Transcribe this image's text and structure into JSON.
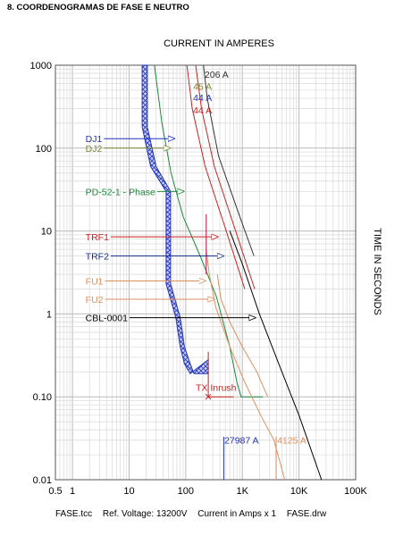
{
  "heading": "8.  COORDENOGRAMAS DE FASE E NEUTRO",
  "footer": {
    "file": "FASE.tcc",
    "ref_voltage": "Ref. Voltage: 13200V",
    "current_scale": "Current in Amps x 1",
    "drawing": "FASE.drw"
  },
  "chart_data": {
    "type": "line",
    "title": "",
    "xlabel": "CURRENT IN AMPERES",
    "ylabel": "TIME IN SECONDS",
    "x_scale": "log",
    "y_scale": "log",
    "xlim": [
      0.5,
      100000
    ],
    "ylim": [
      0.01,
      1000
    ],
    "grid": true,
    "x_ticks": [
      {
        "value": 0.5,
        "label": "0.5"
      },
      {
        "value": 1,
        "label": "1"
      },
      {
        "value": 10,
        "label": "10"
      },
      {
        "value": 100,
        "label": "100"
      },
      {
        "value": 1000,
        "label": "1K"
      },
      {
        "value": 10000,
        "label": "10K"
      },
      {
        "value": 100000,
        "label": "100K"
      }
    ],
    "y_ticks": [
      {
        "value": 1000,
        "label": "1000"
      },
      {
        "value": 100,
        "label": "100"
      },
      {
        "value": 10,
        "label": "10"
      },
      {
        "value": 1,
        "label": "1"
      },
      {
        "value": 0.1,
        "label": "0.10"
      },
      {
        "value": 0.01,
        "label": "0.01"
      }
    ],
    "series": [
      {
        "name": "DJ1",
        "color": "#2233bb",
        "kind": "band",
        "upper": [
          [
            21,
            1000
          ],
          [
            21,
            180
          ],
          [
            30,
            60
          ],
          [
            54,
            30
          ],
          [
            54,
            2.3
          ],
          [
            80,
            0.9
          ],
          [
            95,
            0.4
          ],
          [
            120,
            0.25
          ],
          [
            140,
            0.19
          ],
          [
            250,
            0.19
          ],
          [
            250,
            0.28
          ]
        ],
        "lower": [
          [
            17,
            1000
          ],
          [
            17,
            180
          ],
          [
            24,
            60
          ],
          [
            45,
            30
          ],
          [
            45,
            2.3
          ],
          [
            67,
            0.9
          ],
          [
            80,
            0.4
          ],
          [
            95,
            0.25
          ],
          [
            120,
            0.19
          ]
        ]
      },
      {
        "name": "PD-52-1 - Phase",
        "color": "#1a8a3a",
        "kind": "curve",
        "points": [
          [
            28,
            1000
          ],
          [
            38,
            200
          ],
          [
            55,
            50
          ],
          [
            90,
            15
          ],
          [
            180,
            5
          ],
          [
            350,
            1.6
          ],
          [
            600,
            0.4
          ],
          [
            800,
            0.15
          ],
          [
            950,
            0.1
          ],
          [
            2300,
            0.1
          ]
        ]
      },
      {
        "name": "TRF1",
        "color": "#cc2222",
        "kind": "curve",
        "points": [
          [
            105,
            1000
          ],
          [
            130,
            300
          ],
          [
            220,
            60
          ],
          [
            520,
            10
          ],
          [
            1100,
            2
          ]
        ]
      },
      {
        "name": "TRF2",
        "color": "#cc2222",
        "kind": "curve",
        "points": [
          [
            150,
            1000
          ],
          [
            190,
            300
          ],
          [
            320,
            60
          ],
          [
            760,
            10
          ],
          [
            1650,
            2
          ]
        ]
      },
      {
        "name": "206 A",
        "color": "#333333",
        "kind": "curve",
        "points": [
          [
            206,
            1000
          ],
          [
            240,
            400
          ],
          [
            380,
            80
          ],
          [
            900,
            15
          ],
          [
            1600,
            5
          ]
        ]
      },
      {
        "name": "FU1",
        "color": "#e09060",
        "kind": "curve",
        "points": [
          [
            230,
            6
          ],
          [
            260,
            3
          ],
          [
            340,
            1.2
          ],
          [
            600,
            0.4
          ],
          [
            1100,
            0.15
          ],
          [
            2100,
            0.06
          ],
          [
            3600,
            0.03
          ],
          [
            5600,
            0.01
          ]
        ]
      },
      {
        "name": "FU2",
        "color": "#e09060",
        "kind": "curve",
        "points": [
          [
            360,
            3
          ],
          [
            420,
            1.5
          ],
          [
            600,
            0.8
          ],
          [
            1000,
            0.4
          ],
          [
            1800,
            0.2
          ],
          [
            2800,
            0.1
          ]
        ]
      },
      {
        "name": "CBL-0001",
        "color": "#000000",
        "kind": "curve",
        "points": [
          [
            600,
            10
          ],
          [
            1000,
            4
          ],
          [
            2000,
            1
          ],
          [
            5000,
            0.2
          ],
          [
            10000,
            0.06
          ],
          [
            25000,
            0.01
          ]
        ]
      }
    ],
    "segments": [
      {
        "name": "TRF1 damage segment",
        "color": "#aa1144",
        "points": [
          [
            230,
            16
          ],
          [
            230,
            3
          ]
        ]
      },
      {
        "name": "TX Inrush curve",
        "color": "#cc2222",
        "points": [
          [
            250,
            0.35
          ],
          [
            250,
            0.1
          ],
          [
            350,
            0.1
          ],
          [
            700,
            0.1
          ]
        ]
      },
      {
        "name": "27987 A marker",
        "color": "#2233bb",
        "points": [
          [
            470,
            0.01
          ],
          [
            470,
            0.033
          ]
        ]
      },
      {
        "name": "4125 A marker",
        "color": "#e09060",
        "points": [
          [
            3950,
            0.01
          ],
          [
            3950,
            0.033
          ]
        ]
      }
    ],
    "labels": [
      {
        "text": "DJ1",
        "color": "#2233bb",
        "arrow_to": [
          65,
          130
        ],
        "x": 1.7,
        "y": 130
      },
      {
        "text": "DJ2",
        "color": "#7a8a33",
        "arrow_to": [
          55,
          100
        ],
        "x": 1.7,
        "y": 100
      },
      {
        "text": "PD-52-1 - Phase",
        "color": "#1a8a3a",
        "arrow_to": [
          95,
          30
        ],
        "x": 1.7,
        "y": 30
      },
      {
        "text": "TRF1",
        "color": "#cc2222",
        "arrow_to": [
          380,
          8.5
        ],
        "x": 1.7,
        "y": 8.5
      },
      {
        "text": "TRF2",
        "color": "#1a3088",
        "arrow_to": [
          480,
          5
        ],
        "x": 1.7,
        "y": 5
      },
      {
        "text": "FU1",
        "color": "#e09060",
        "arrow_to": [
          230,
          2.5
        ],
        "x": 1.7,
        "y": 2.5
      },
      {
        "text": "FU2",
        "color": "#e09060",
        "arrow_to": [
          330,
          1.5
        ],
        "x": 1.7,
        "y": 1.5
      },
      {
        "text": "CBL-0001",
        "color": "#000000",
        "arrow_to": [
          1750,
          0.9
        ],
        "x": 1.7,
        "y": 0.9
      },
      {
        "text": "206 A",
        "color": "#333333",
        "x": 215,
        "y": 780
      },
      {
        "text": "45 A",
        "color": "#7a8a33",
        "x": 135,
        "y": 560
      },
      {
        "text": "44 A",
        "color": "#2233bb",
        "x": 135,
        "y": 410
      },
      {
        "text": "44 A",
        "color": "#cc2222",
        "x": 135,
        "y": 290
      },
      {
        "text": "TX Inrush",
        "color": "#cc2222",
        "x": 150,
        "y": 0.13,
        "marker": [
          250,
          0.1
        ]
      },
      {
        "text": "27987 A",
        "color": "#2233bb",
        "x": 480,
        "y": 0.03
      },
      {
        "text": "4125 A",
        "color": "#e09060",
        "x": 4100,
        "y": 0.03
      }
    ]
  }
}
